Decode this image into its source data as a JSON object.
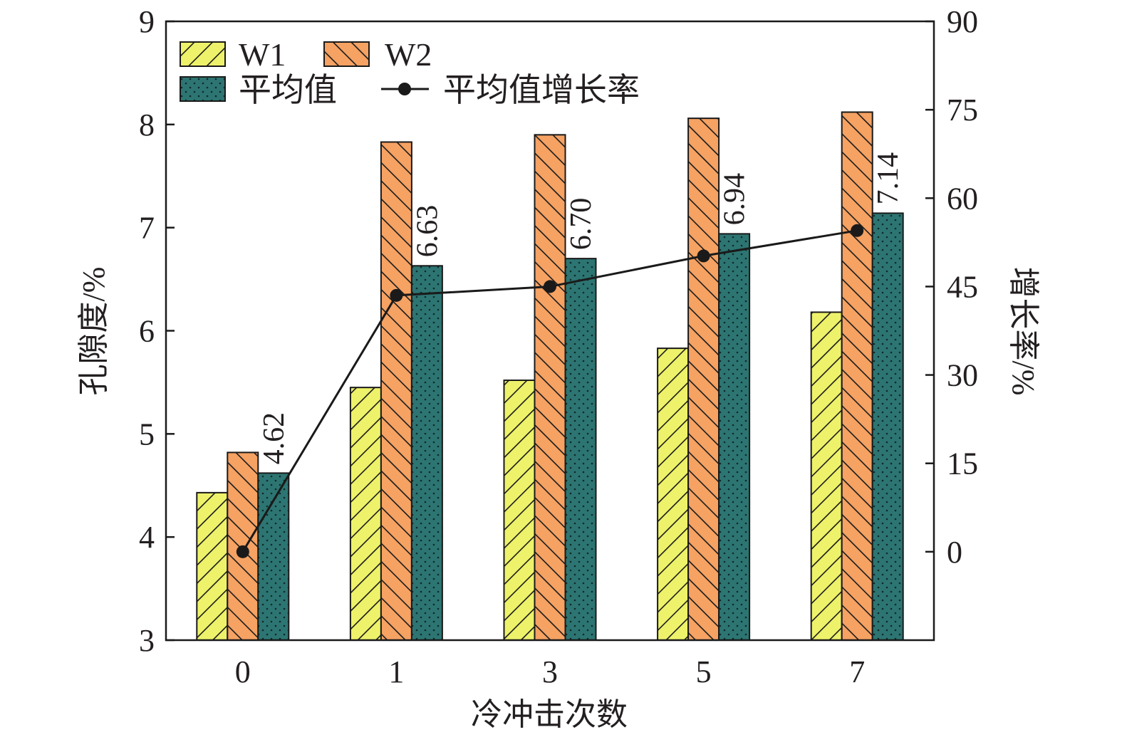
{
  "chart_data": {
    "type": "bar",
    "categories": [
      "0",
      "1",
      "3",
      "5",
      "7"
    ],
    "series": [
      {
        "name": "W1",
        "values": [
          4.43,
          5.45,
          5.52,
          5.83,
          6.18
        ],
        "color": "#eef26a",
        "pattern": "hatch-forward"
      },
      {
        "name": "W2",
        "values": [
          4.82,
          7.83,
          7.9,
          8.06,
          8.12
        ],
        "color": "#f5a263",
        "pattern": "hatch-backward"
      },
      {
        "name": "平均值",
        "values": [
          4.62,
          6.63,
          6.7,
          6.94,
          7.14
        ],
        "color": "#2d7572",
        "pattern": "dots"
      }
    ],
    "line_series": {
      "name": "平均值增长率",
      "values": [
        0,
        43.5,
        45.0,
        50.2,
        54.5
      ],
      "axis": "right",
      "color": "#1a1a1a"
    },
    "data_labels": [
      "4.62",
      "6.63",
      "6.70",
      "6.94",
      "7.14"
    ],
    "xlabel": "冷冲击次数",
    "ylabel": "孔隙度/%",
    "y2label": "增长率/%",
    "ylim": [
      3,
      9
    ],
    "y2lim": [
      -15,
      90
    ],
    "yticks": [
      "3",
      "4",
      "5",
      "6",
      "7",
      "8",
      "9"
    ],
    "y2ticks": [
      "0",
      "15",
      "30",
      "45",
      "60",
      "75",
      "90"
    ],
    "grid": false,
    "legend_position": "top-left"
  }
}
